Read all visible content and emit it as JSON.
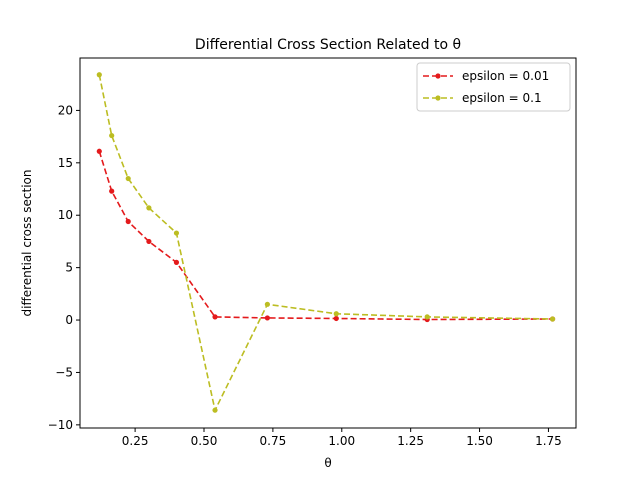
{
  "chart_data": {
    "type": "line",
    "title": "Differential Cross Section Related to θ",
    "xlabel": "θ",
    "ylabel": "differential cross section",
    "xlim": [
      0.05,
      1.85
    ],
    "ylim": [
      -10.3,
      25.0
    ],
    "xticks": [
      0.25,
      0.5,
      0.75,
      1.0,
      1.25,
      1.5,
      1.75
    ],
    "xtick_labels": [
      "0.25",
      "0.50",
      "0.75",
      "1.00",
      "1.25",
      "1.50",
      "1.75"
    ],
    "yticks": [
      -10,
      -5,
      0,
      5,
      10,
      15,
      20
    ],
    "ytick_labels": [
      "−10",
      "−5",
      "0",
      "5",
      "10",
      "15",
      "20"
    ],
    "grid": false,
    "legend_position": "top-right",
    "series": [
      {
        "name": "epsilon = 0.01",
        "color": "#e41a1c",
        "line_style": "dashed",
        "marker": "circle",
        "x": [
          0.12,
          0.165,
          0.225,
          0.3,
          0.4,
          0.54,
          0.73,
          0.98,
          1.31,
          1.765
        ],
        "y": [
          16.1,
          12.3,
          9.4,
          7.5,
          5.5,
          0.3,
          0.2,
          0.15,
          0.05,
          0.1
        ]
      },
      {
        "name": "epsilon = 0.1",
        "color": "#bcbd22",
        "line_style": "dashed",
        "marker": "circle",
        "x": [
          0.12,
          0.165,
          0.225,
          0.3,
          0.4,
          0.54,
          0.73,
          0.98,
          1.31,
          1.765
        ],
        "y": [
          23.4,
          17.6,
          13.5,
          10.7,
          8.3,
          -8.6,
          1.5,
          0.6,
          0.3,
          0.1
        ]
      }
    ]
  }
}
